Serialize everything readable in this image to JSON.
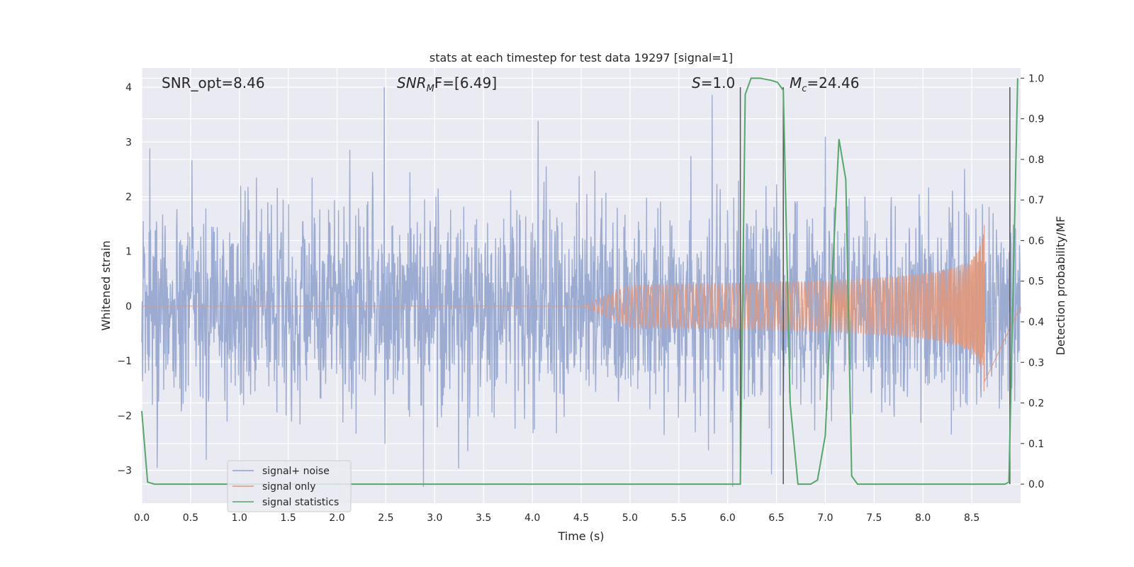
{
  "chart_data": {
    "type": "line",
    "title": "stats at each timestep for test data 19297 [signal=1]",
    "xlabel": "Time (s)",
    "ylabel": "Whitened strain",
    "y2label": "Detection probability/MF",
    "xlim": [
      0.0,
      9.0
    ],
    "ylim": [
      -3.6,
      4.35
    ],
    "y2lim": [
      -0.047,
      1.025
    ],
    "xticks": [
      "0.0",
      "0.5",
      "1.0",
      "1.5",
      "2.0",
      "2.5",
      "3.0",
      "3.5",
      "4.0",
      "4.5",
      "5.0",
      "5.5",
      "6.0",
      "6.5",
      "7.0",
      "7.5",
      "8.0",
      "8.5"
    ],
    "yticks": [
      "4",
      "3",
      "2",
      "1",
      "0",
      "−1",
      "−2",
      "−3"
    ],
    "y2ticks": [
      "1.0",
      "0.9",
      "0.8",
      "0.7",
      "0.6",
      "0.5",
      "0.4",
      "0.3",
      "0.2",
      "0.1",
      "0.0"
    ],
    "grid": true,
    "legend_position": "lower-left",
    "annotations": {
      "snr_opt": "SNR_opt=8.46",
      "snr_mf_prefix": "SNR",
      "snr_mf_sub": "M",
      "snr_mf_suffix": "F=[6.49]",
      "s_var": "S",
      "s_value": "=1.0",
      "mc_var": "M",
      "mc_sub": "c",
      "mc_value": "=24.46"
    },
    "vlines": [
      6.13,
      6.57,
      8.89
    ],
    "series": [
      {
        "name": "signal+ noise",
        "color": "#8da0cb",
        "description_stats": {
          "core_band": [
            -1.0,
            1.1
          ],
          "spike_max": 4.0,
          "spike_min": -3.3
        }
      },
      {
        "name": "signal only",
        "color": "#e1977a",
        "chirp": {
          "start_x": 4.5,
          "peak_x": 8.63,
          "peak_amp_pos": 1.7,
          "peak_amp_neg": -1.65
        }
      },
      {
        "name": "signal statistics",
        "color": "#55a868",
        "x": [
          0.0,
          0.06,
          0.13,
          1.0,
          2.0,
          3.0,
          4.0,
          5.0,
          6.0,
          6.12,
          6.13,
          6.18,
          6.24,
          6.33,
          6.44,
          6.51,
          6.57,
          6.64,
          6.72,
          6.85,
          6.92,
          7.0,
          7.06,
          7.14,
          7.21,
          7.27,
          7.33,
          8.0,
          8.5,
          8.84,
          8.88,
          8.93,
          8.97
        ],
        "y": [
          0.18,
          0.005,
          0.0,
          0.0,
          0.0,
          0.0,
          0.0,
          0.0,
          0.0,
          0.0,
          0.0,
          0.96,
          1.0,
          1.0,
          0.995,
          0.99,
          0.97,
          0.2,
          0.0,
          0.0,
          0.01,
          0.12,
          0.45,
          0.85,
          0.75,
          0.02,
          0.0,
          0.0,
          0.0,
          0.0,
          0.005,
          0.55,
          1.0
        ]
      }
    ]
  }
}
